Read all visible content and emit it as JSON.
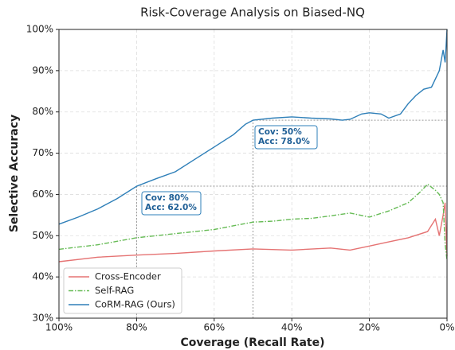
{
  "chart_data": {
    "type": "line",
    "title": "Risk-Coverage Analysis on Biased-NQ",
    "x_label": "Coverage (Recall Rate)",
    "y_label": "Selective Accuracy",
    "xlim": [
      100,
      0
    ],
    "xticks": [
      {
        "value": 100,
        "label": "100%"
      },
      {
        "value": 80,
        "label": "80%"
      },
      {
        "value": 60,
        "label": "60%"
      },
      {
        "value": 40,
        "label": "40%"
      },
      {
        "value": 20,
        "label": "20%"
      },
      {
        "value": 0,
        "label": "0%"
      }
    ],
    "ylim": [
      30,
      100
    ],
    "yticks": [
      {
        "value": 30,
        "label": "30%"
      },
      {
        "value": 40,
        "label": "40%"
      },
      {
        "value": 50,
        "label": "50%"
      },
      {
        "value": 60,
        "label": "60%"
      },
      {
        "value": 70,
        "label": "70%"
      },
      {
        "value": 80,
        "label": "80%"
      },
      {
        "value": 90,
        "label": "90%"
      },
      {
        "value": 100,
        "label": "100%"
      }
    ],
    "grid": true,
    "legend": "lower left",
    "series": [
      {
        "name": "Cross-Encoder",
        "color": "#e57373",
        "style": "solid",
        "x": [
          100,
          90,
          80,
          70,
          60,
          50,
          40,
          30,
          25,
          20,
          15,
          10,
          5,
          3,
          2,
          1,
          0.5,
          0
        ],
        "values": [
          43.7,
          44.8,
          45.3,
          45.7,
          46.3,
          46.8,
          46.5,
          47,
          46.5,
          47.5,
          48.5,
          49.5,
          51,
          54,
          50,
          55,
          58,
          45
        ]
      },
      {
        "name": "Self-RAG",
        "color": "#66bb55",
        "style": "dashdot",
        "x": [
          100,
          90,
          80,
          70,
          60,
          50,
          45,
          40,
          35,
          30,
          25,
          20,
          15,
          10,
          7,
          5,
          3,
          2,
          1,
          0.5,
          0
        ],
        "values": [
          46.7,
          47.8,
          49.5,
          50.5,
          51.5,
          53.3,
          53.5,
          54,
          54.2,
          54.8,
          55.5,
          54.5,
          56,
          58,
          60.5,
          62.5,
          61,
          60,
          58,
          48,
          44
        ]
      },
      {
        "name": "CoRM-RAG (Ours)",
        "color": "#2e7fb8",
        "style": "solid",
        "x": [
          100,
          95,
          90,
          85,
          80,
          75,
          70,
          65,
          60,
          55,
          52,
          50,
          45,
          40,
          35,
          30,
          27,
          25,
          22,
          20,
          17,
          15,
          12,
          10,
          8,
          6,
          4,
          2,
          1,
          0.5,
          0
        ],
        "values": [
          52.8,
          54.5,
          56.5,
          59,
          62,
          63.8,
          65.5,
          68.5,
          71.5,
          74.5,
          77,
          78,
          78.5,
          78.8,
          78.5,
          78.3,
          78,
          78.2,
          79.5,
          79.8,
          79.5,
          78.5,
          79.5,
          82,
          84,
          85.5,
          86,
          90,
          95,
          92,
          100
        ]
      }
    ],
    "annotations": [
      {
        "x": 80,
        "y": 62,
        "lines": [
          "Cov: 80%",
          "Acc: 62.0%"
        ]
      },
      {
        "x": 50,
        "y": 78,
        "lines": [
          "Cov: 50%",
          "Acc: 78.0%"
        ]
      }
    ]
  }
}
